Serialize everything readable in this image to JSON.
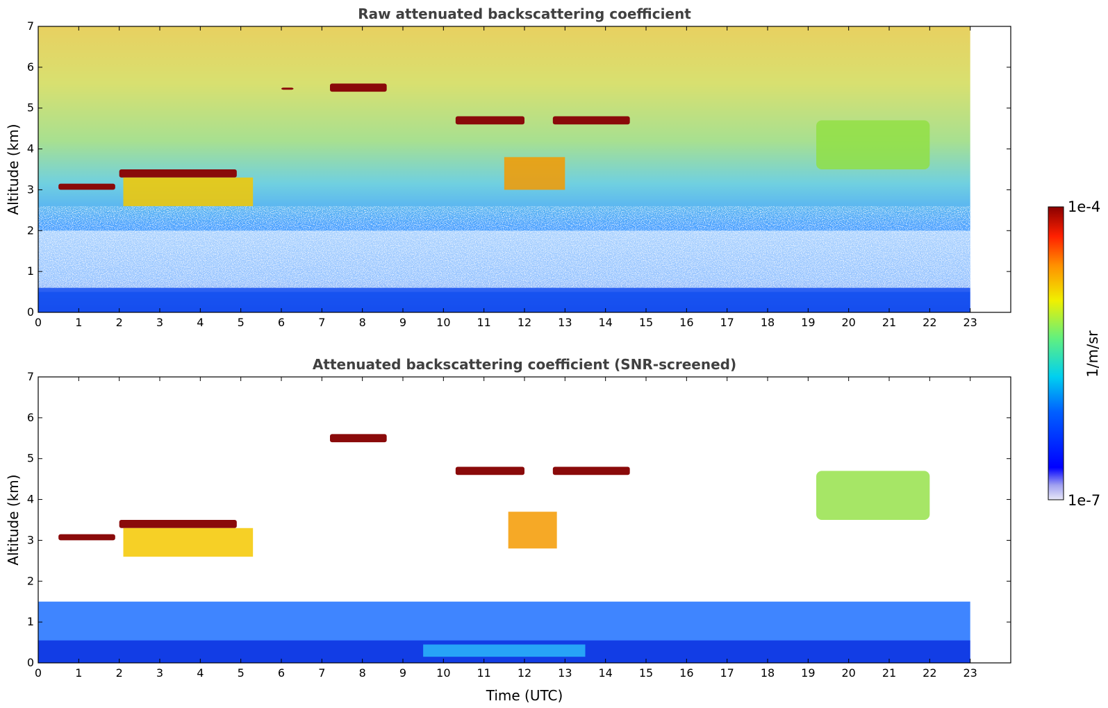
{
  "chart_data": [
    {
      "type": "heatmap",
      "title": "Raw attenuated backscattering coefficient",
      "xlabel": "",
      "ylabel": "Altitude (km)",
      "xlim": [
        0,
        24
      ],
      "ylim": [
        0,
        7
      ],
      "x_ticks": [
        0,
        1,
        2,
        3,
        4,
        5,
        6,
        7,
        8,
        9,
        10,
        11,
        12,
        13,
        14,
        15,
        16,
        17,
        18,
        19,
        20,
        21,
        22,
        23
      ],
      "y_ticks": [
        0,
        1,
        2,
        3,
        4,
        5,
        6,
        7
      ],
      "data_end_time": 23,
      "features": [
        {
          "kind": "boundary_layer",
          "t": [
            0,
            23
          ],
          "alt": [
            0,
            0.6
          ],
          "level": "low-blue"
        },
        {
          "kind": "cloud",
          "t": [
            0.5,
            1.9
          ],
          "alt": [
            3.0,
            3.15
          ],
          "level": "max"
        },
        {
          "kind": "cloud",
          "t": [
            2.0,
            4.9
          ],
          "alt": [
            3.3,
            3.5
          ],
          "level": "max"
        },
        {
          "kind": "cloud_fill",
          "t": [
            2.1,
            5.3
          ],
          "alt": [
            2.6,
            3.3
          ],
          "level": "yellow"
        },
        {
          "kind": "cloud",
          "t": [
            6.0,
            6.3
          ],
          "alt": [
            5.45,
            5.5
          ],
          "level": "max"
        },
        {
          "kind": "cloud",
          "t": [
            7.2,
            8.6
          ],
          "alt": [
            5.4,
            5.6
          ],
          "level": "max"
        },
        {
          "kind": "cloud",
          "t": [
            10.3,
            12.0
          ],
          "alt": [
            4.6,
            4.8
          ],
          "level": "max"
        },
        {
          "kind": "cloud",
          "t": [
            12.7,
            14.6
          ],
          "alt": [
            4.6,
            4.8
          ],
          "level": "max"
        },
        {
          "kind": "cloud_fill",
          "t": [
            11.5,
            13.0
          ],
          "alt": [
            3.0,
            3.8
          ],
          "level": "orange"
        },
        {
          "kind": "cirrus",
          "t": [
            19.2,
            22.0
          ],
          "alt": [
            3.5,
            4.7
          ],
          "level": "green"
        }
      ]
    },
    {
      "type": "heatmap",
      "title": "Attenuated backscattering coefficient (SNR-screened)",
      "xlabel": "Time (UTC)",
      "ylabel": "Altitude (km)",
      "xlim": [
        0,
        24
      ],
      "ylim": [
        0,
        7
      ],
      "x_ticks": [
        0,
        1,
        2,
        3,
        4,
        5,
        6,
        7,
        8,
        9,
        10,
        11,
        12,
        13,
        14,
        15,
        16,
        17,
        18,
        19,
        20,
        21,
        22,
        23
      ],
      "y_ticks": [
        0,
        1,
        2,
        3,
        4,
        5,
        6,
        7
      ],
      "data_end_time": 23,
      "features": [
        {
          "kind": "boundary_layer",
          "t": [
            0,
            23
          ],
          "alt": [
            0,
            1.5
          ],
          "level": "low-blue"
        },
        {
          "kind": "cloud",
          "t": [
            0.5,
            1.9
          ],
          "alt": [
            3.0,
            3.15
          ],
          "level": "max"
        },
        {
          "kind": "cloud",
          "t": [
            2.0,
            4.9
          ],
          "alt": [
            3.3,
            3.5
          ],
          "level": "max"
        },
        {
          "kind": "cloud_fill",
          "t": [
            2.1,
            5.3
          ],
          "alt": [
            2.6,
            3.3
          ],
          "level": "yellow"
        },
        {
          "kind": "cloud",
          "t": [
            7.2,
            8.6
          ],
          "alt": [
            5.4,
            5.6
          ],
          "level": "max"
        },
        {
          "kind": "cloud",
          "t": [
            10.3,
            12.0
          ],
          "alt": [
            4.6,
            4.8
          ],
          "level": "max"
        },
        {
          "kind": "cloud",
          "t": [
            12.7,
            14.6
          ],
          "alt": [
            4.6,
            4.8
          ],
          "level": "max"
        },
        {
          "kind": "cloud_fill",
          "t": [
            11.6,
            12.8
          ],
          "alt": [
            2.8,
            3.7
          ],
          "level": "orange"
        },
        {
          "kind": "cirrus",
          "t": [
            19.2,
            22.0
          ],
          "alt": [
            3.5,
            4.7
          ],
          "level": "green"
        }
      ]
    }
  ],
  "colorbar": {
    "label": "1/m/sr",
    "max_label": "1e-4",
    "min_label": "1e-7",
    "colormap": "jet-like (white-lavender → blue → cyan → green → yellow → orange → red → dark red)"
  }
}
